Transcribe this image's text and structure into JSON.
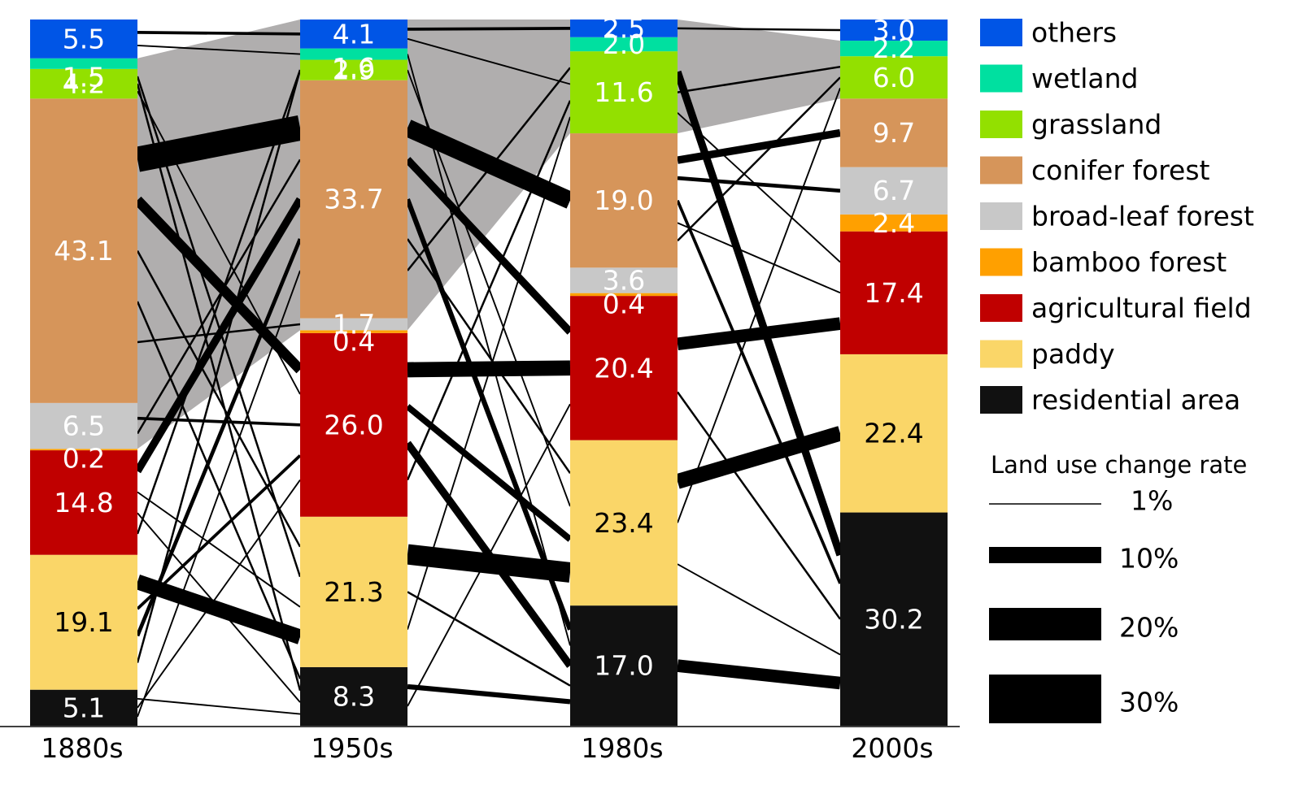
{
  "chart_data": {
    "type": "stacked-bar with flows (alluvial)",
    "title": "",
    "xlabel": "",
    "ylabel": "",
    "ylim": [
      0,
      100
    ],
    "categories": [
      "1880s",
      "1950s",
      "1980s",
      "2000s"
    ],
    "classes": [
      {
        "name": "residential area",
        "color": "#111111",
        "text_color": "#ffffff"
      },
      {
        "name": "paddy",
        "color": "#fad668",
        "text_color": "#000000"
      },
      {
        "name": "agricultural field",
        "color": "#c00000",
        "text_color": "#ffffff"
      },
      {
        "name": "bamboo forest",
        "color": "#ffa000",
        "text_color": "#ffffff"
      },
      {
        "name": "broad-leaf forest",
        "color": "#c8c8c8",
        "text_color": "#ffffff"
      },
      {
        "name": "conifer forest",
        "color": "#d6955a",
        "text_color": "#ffffff"
      },
      {
        "name": "grassland",
        "color": "#93e000",
        "text_color": "#ffffff"
      },
      {
        "name": "wetland",
        "color": "#00e0a0",
        "text_color": "#ffffff"
      },
      {
        "name": "others",
        "color": "#0055e6",
        "text_color": "#ffffff"
      }
    ],
    "series": [
      {
        "name": "residential area",
        "values": [
          5.1,
          8.3,
          17.0,
          30.2
        ],
        "labels": [
          "5.1",
          "8.3",
          "17.0",
          "30.2"
        ]
      },
      {
        "name": "paddy",
        "values": [
          19.1,
          21.3,
          23.4,
          22.4
        ],
        "labels": [
          "19.1",
          "21.3",
          "23.4",
          "22.4"
        ]
      },
      {
        "name": "agricultural field",
        "values": [
          14.8,
          26.0,
          20.4,
          17.4
        ],
        "labels": [
          "14.8",
          "26.0",
          "20.4",
          "17.4"
        ]
      },
      {
        "name": "bamboo forest",
        "values": [
          0.2,
          0.4,
          0.4,
          2.4
        ],
        "labels": [
          "0.2",
          "0.4",
          "0.4",
          "2.4"
        ]
      },
      {
        "name": "broad-leaf forest",
        "values": [
          6.5,
          1.7,
          3.6,
          6.7
        ],
        "labels": [
          "6.5",
          "1.7",
          "3.6",
          "6.7"
        ]
      },
      {
        "name": "conifer forest",
        "values": [
          43.1,
          33.7,
          19.0,
          9.7
        ],
        "labels": [
          "43.1",
          "33.7",
          "19.0",
          "9.7"
        ]
      },
      {
        "name": "grassland",
        "values": [
          4.2,
          2.9,
          11.6,
          6.0
        ],
        "labels": [
          "4.2",
          "2.9",
          "11.6",
          "6.0"
        ]
      },
      {
        "name": "wetland",
        "values": [
          1.5,
          1.6,
          2.0,
          2.2
        ],
        "labels": [
          "1.5",
          "1.6",
          "2.0",
          "2.2"
        ]
      },
      {
        "name": "others",
        "values": [
          5.5,
          4.1,
          2.5,
          3.0
        ],
        "labels": [
          "5.5",
          "4.1",
          "2.5",
          "3.0"
        ]
      }
    ],
    "retained_area_band": {
      "color": "#b0aeae",
      "path": [
        {
          "period": "1880s",
          "from": "wetland",
          "to": "broad-leaf forest"
        },
        {
          "period": "1950s",
          "from": "others",
          "to": "broad-leaf forest"
        },
        {
          "period": "1980s",
          "from": "others",
          "to": "grassland"
        },
        {
          "period": "2000s",
          "from": "wetland",
          "to": "grassland"
        }
      ]
    },
    "transitions": [
      {
        "period": 0,
        "from": "conifer forest",
        "to": "conifer forest",
        "rate": 10
      },
      {
        "period": 0,
        "from": "conifer forest",
        "to": "agricultural field",
        "rate": 4
      },
      {
        "period": 0,
        "from": "conifer forest",
        "to": "paddy",
        "rate": 0.8
      },
      {
        "period": 0,
        "from": "conifer forest",
        "to": "residential area",
        "rate": 0.8
      },
      {
        "period": 0,
        "from": "conifer forest",
        "to": "broad-leaf forest",
        "rate": 0.8
      },
      {
        "period": 0,
        "from": "others",
        "to": "others",
        "rate": 1.2
      },
      {
        "period": 0,
        "from": "others",
        "to": "wetland",
        "rate": 0.6
      },
      {
        "period": 0,
        "from": "grassland",
        "to": "paddy",
        "rate": 0.8
      },
      {
        "period": 0,
        "from": "grassland",
        "to": "residential area",
        "rate": 0.8
      },
      {
        "period": 0,
        "from": "grassland",
        "to": "agricultural field",
        "rate": 0.6
      },
      {
        "period": 0,
        "from": "broad-leaf forest",
        "to": "agricultural field",
        "rate": 1.2
      },
      {
        "period": 0,
        "from": "broad-leaf forest",
        "to": "conifer forest",
        "rate": 0.8
      },
      {
        "period": 0,
        "from": "agricultural field",
        "to": "conifer forest",
        "rate": 3
      },
      {
        "period": 0,
        "from": "agricultural field",
        "to": "paddy",
        "rate": 0.6
      },
      {
        "period": 0,
        "from": "agricultural field",
        "to": "residential area",
        "rate": 0.6
      },
      {
        "period": 0,
        "from": "agricultural field",
        "to": "grassland",
        "rate": 0.8
      },
      {
        "period": 0,
        "from": "paddy",
        "to": "paddy",
        "rate": 6
      },
      {
        "period": 0,
        "from": "paddy",
        "to": "agricultural field",
        "rate": 1.2
      },
      {
        "period": 0,
        "from": "paddy",
        "to": "conifer forest",
        "rate": 1.5
      },
      {
        "period": 0,
        "from": "paddy",
        "to": "grassland",
        "rate": 0.8
      },
      {
        "period": 0,
        "from": "residential area",
        "to": "residential area",
        "rate": 0.6
      },
      {
        "period": 0,
        "from": "residential area",
        "to": "agricultural field",
        "rate": 0.6
      },
      {
        "period": 0,
        "from": "residential area",
        "to": "conifer forest",
        "rate": 0.6
      },
      {
        "period": 1,
        "from": "conifer forest",
        "to": "conifer forest",
        "rate": 7
      },
      {
        "period": 1,
        "from": "conifer forest",
        "to": "agricultural field",
        "rate": 3
      },
      {
        "period": 1,
        "from": "conifer forest",
        "to": "residential area",
        "rate": 2
      },
      {
        "period": 1,
        "from": "conifer forest",
        "to": "paddy",
        "rate": 0.8
      },
      {
        "period": 1,
        "from": "conifer forest",
        "to": "grassland",
        "rate": 0.8
      },
      {
        "period": 1,
        "from": "others",
        "to": "others",
        "rate": 1.2
      },
      {
        "period": 1,
        "from": "others",
        "to": "grassland",
        "rate": 0.6
      },
      {
        "period": 1,
        "from": "wetland",
        "to": "residential area",
        "rate": 0.6
      },
      {
        "period": 1,
        "from": "grassland",
        "to": "paddy",
        "rate": 0.6
      },
      {
        "period": 1,
        "from": "agricultural field",
        "to": "agricultural field",
        "rate": 6
      },
      {
        "period": 1,
        "from": "agricultural field",
        "to": "paddy",
        "rate": 2.5
      },
      {
        "period": 1,
        "from": "agricultural field",
        "to": "residential area",
        "rate": 3
      },
      {
        "period": 1,
        "from": "agricultural field",
        "to": "grassland",
        "rate": 0.8
      },
      {
        "period": 1,
        "from": "paddy",
        "to": "paddy",
        "rate": 8
      },
      {
        "period": 1,
        "from": "paddy",
        "to": "residential area",
        "rate": 0.8
      },
      {
        "period": 1,
        "from": "paddy",
        "to": "grassland",
        "rate": 0.6
      },
      {
        "period": 1,
        "from": "residential area",
        "to": "residential area",
        "rate": 2
      },
      {
        "period": 1,
        "from": "residential area",
        "to": "agricultural field",
        "rate": 0.6
      },
      {
        "period": 2,
        "from": "others",
        "to": "others",
        "rate": 0.8
      },
      {
        "period": 2,
        "from": "grassland",
        "to": "residential area",
        "rate": 3
      },
      {
        "period": 2,
        "from": "grassland",
        "to": "grassland",
        "rate": 0.8
      },
      {
        "period": 2,
        "from": "grassland",
        "to": "agricultural field",
        "rate": 0.6
      },
      {
        "period": 2,
        "from": "conifer forest",
        "to": "conifer forest",
        "rate": 3
      },
      {
        "period": 2,
        "from": "conifer forest",
        "to": "broad-leaf forest",
        "rate": 1.5
      },
      {
        "period": 2,
        "from": "conifer forest",
        "to": "residential area",
        "rate": 1.2
      },
      {
        "period": 2,
        "from": "conifer forest",
        "to": "agricultural field",
        "rate": 0.6
      },
      {
        "period": 2,
        "from": "conifer forest",
        "to": "grassland",
        "rate": 0.8
      },
      {
        "period": 2,
        "from": "agricultural field",
        "to": "agricultural field",
        "rate": 5
      },
      {
        "period": 2,
        "from": "agricultural field",
        "to": "residential area",
        "rate": 0.8
      },
      {
        "period": 2,
        "from": "paddy",
        "to": "paddy",
        "rate": 6
      },
      {
        "period": 2,
        "from": "paddy",
        "to": "grassland",
        "rate": 0.6
      },
      {
        "period": 2,
        "from": "paddy",
        "to": "residential area",
        "rate": 0.6
      },
      {
        "period": 2,
        "from": "residential area",
        "to": "residential area",
        "rate": 5
      }
    ]
  },
  "legend": {
    "items": [
      "others",
      "wetland",
      "grassland",
      "conifer forest",
      "broad-leaf forest",
      "bamboo forest",
      "agricultural field",
      "paddy",
      "residential area"
    ]
  },
  "rate_legend": {
    "title": "Land use change rate",
    "entries": [
      {
        "label": "1%",
        "rate": 1
      },
      {
        "label": "10%",
        "rate": 10
      },
      {
        "label": "20%",
        "rate": 20
      },
      {
        "label": "30%",
        "rate": 30
      }
    ]
  }
}
